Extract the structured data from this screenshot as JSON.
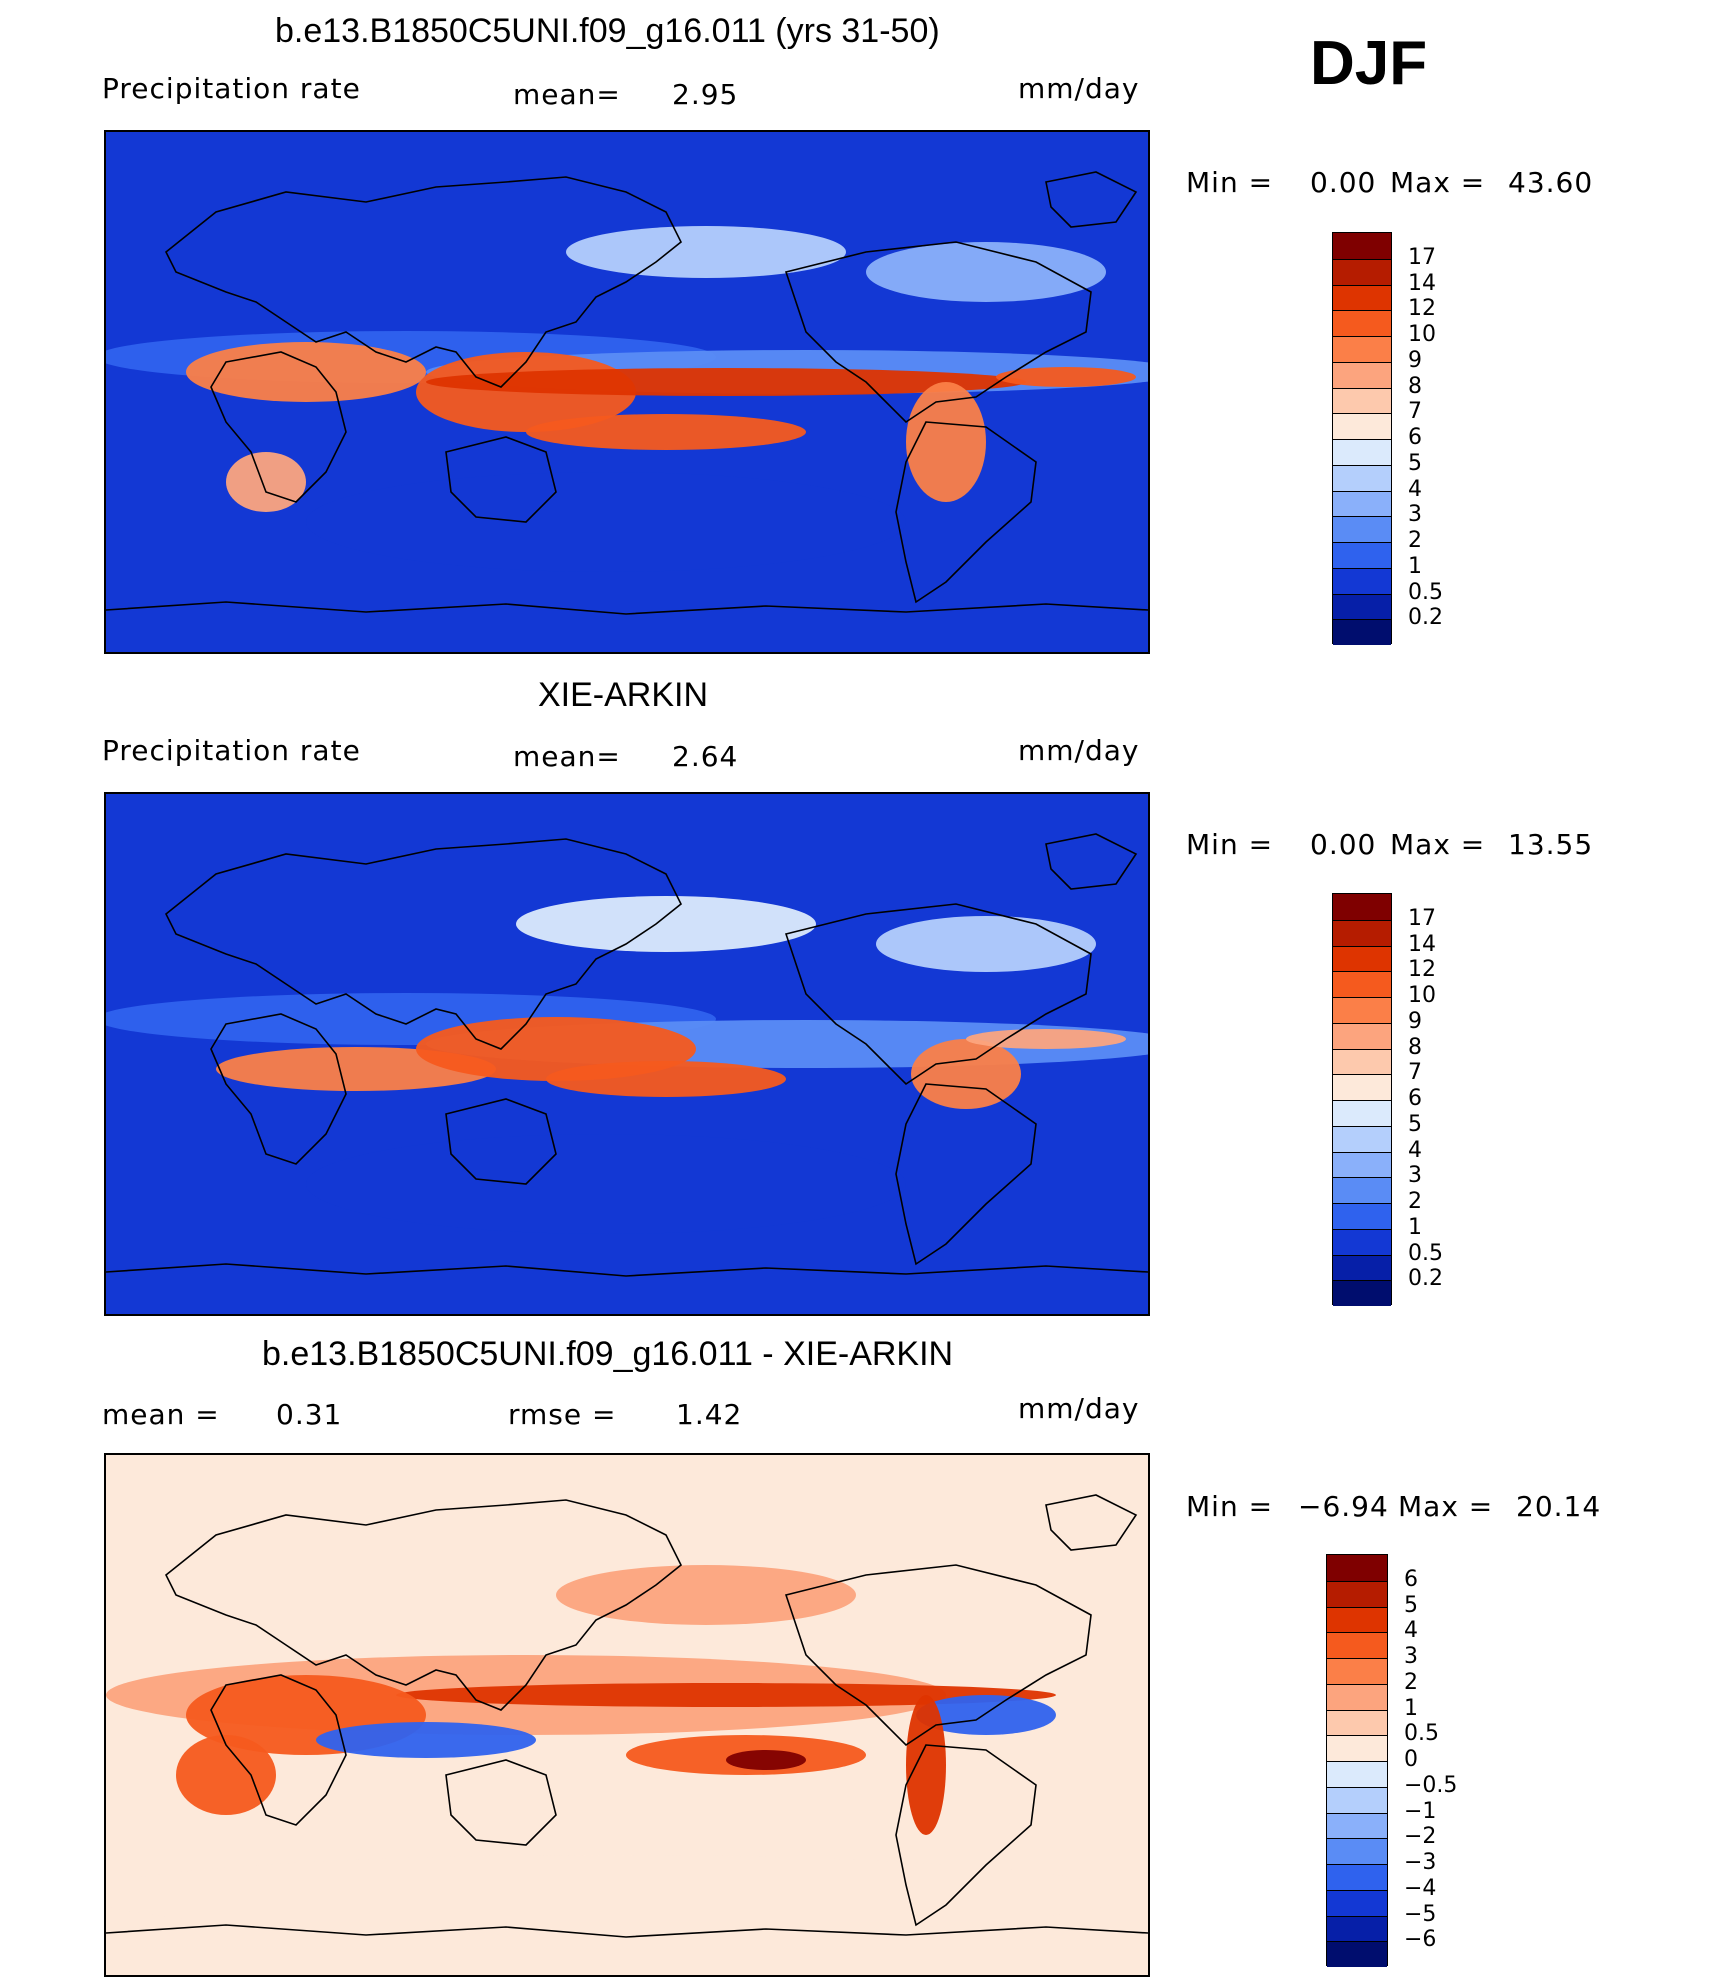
{
  "season": "DJF",
  "panels": [
    {
      "id": "model",
      "title": "b.e13.B1850C5UNI.f09_g16.011 (yrs 31-50)",
      "left_label": "Precipitation  rate",
      "center_label": "mean=",
      "center_value": "2.95",
      "units": "mm/day",
      "min_label": "Min  =",
      "min_value": "0.00",
      "max_label": "Max  =",
      "max_value": "43.60",
      "scheme": "seq"
    },
    {
      "id": "obs",
      "title": "XIE-ARKIN",
      "left_label": "Precipitation  rate",
      "center_label": "mean=",
      "center_value": "2.64",
      "units": "mm/day",
      "min_label": "Min  =",
      "min_value": "0.00",
      "max_label": "Max  =",
      "max_value": "13.55",
      "scheme": "seq"
    },
    {
      "id": "diff",
      "title": "b.e13.B1850C5UNI.f09_g16.011 - XIE-ARKIN",
      "left_label": "mean  =",
      "left_value": "0.31",
      "center_label": "rmse  =",
      "center_value": "1.42",
      "units": "mm/day",
      "min_label": "Min  =",
      "min_value": "−6.94",
      "max_label": "Max  =",
      "max_value": "20.14",
      "scheme": "div"
    }
  ],
  "colorbars": {
    "seq": {
      "labels": [
        "17",
        "14",
        "12",
        "10",
        "9",
        "8",
        "7",
        "6",
        "5",
        "4",
        "3",
        "2",
        "1",
        "0.5",
        "0.2"
      ],
      "colors": [
        "#7f0000",
        "#b51c00",
        "#de3400",
        "#f55a1e",
        "#fb7f48",
        "#fca47e",
        "#fdc9ad",
        "#fde9da",
        "#dbeafc",
        "#b4cffc",
        "#8ab0fa",
        "#5a8cf5",
        "#2f62ee",
        "#1338d4",
        "#061fa8",
        "#000d6e"
      ]
    },
    "div": {
      "labels": [
        "6",
        "5",
        "4",
        "3",
        "2",
        "1",
        "0.5",
        "0",
        "−0.5",
        "−1",
        "−2",
        "−3",
        "−4",
        "−5",
        "−6"
      ],
      "colors": [
        "#7f0000",
        "#b51c00",
        "#de3400",
        "#f55a1e",
        "#fb7f48",
        "#fca47e",
        "#fdc9ad",
        "#fde9da",
        "#dbeafc",
        "#b4cffc",
        "#8ab0fa",
        "#5a8cf5",
        "#2f62ee",
        "#1338d4",
        "#061fa8",
        "#000d6e"
      ]
    }
  }
}
